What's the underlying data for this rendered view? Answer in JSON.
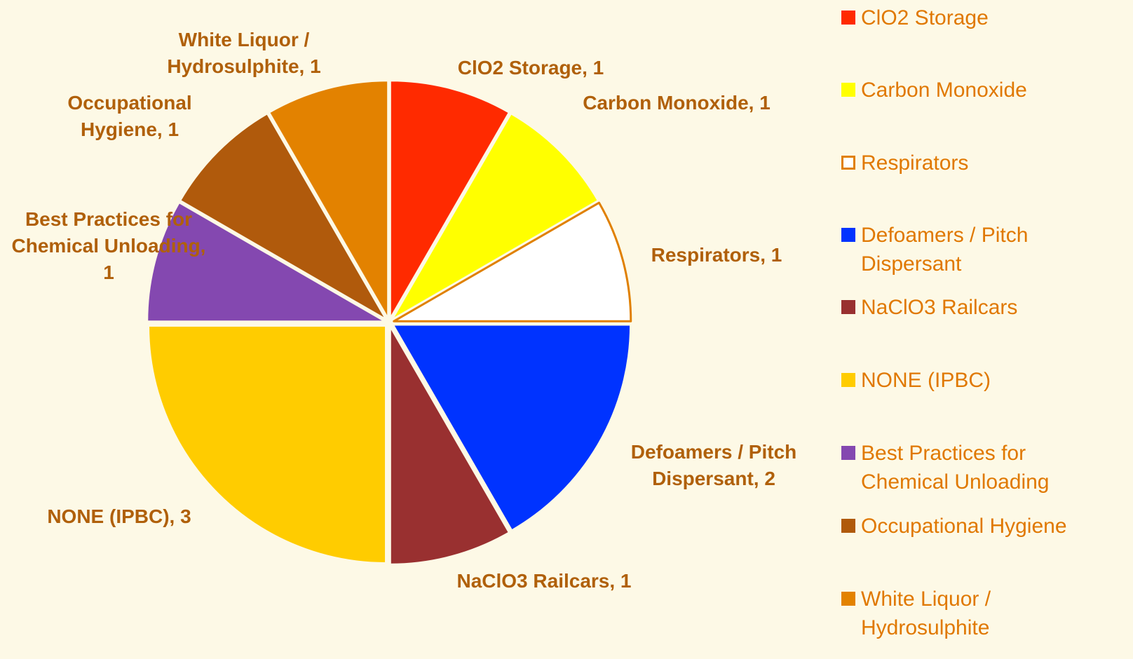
{
  "chart_data": {
    "type": "pie",
    "categories": [
      "ClO2 Storage",
      "Carbon Monoxide",
      "Respirators",
      "Defoamers / Pitch Dispersant",
      "NaClO3 Railcars",
      "NONE (IPBC)",
      "Best Practices for Chemical Unloading",
      "Occupational Hygiene",
      "White Liquor / Hydrosulphite"
    ],
    "values": [
      1,
      1,
      1,
      2,
      1,
      3,
      1,
      1,
      1
    ],
    "value_labels": [
      "ClO2 Storage, 1",
      "Carbon Monoxide, 1",
      "Respirators, 1",
      "Defoamers / Pitch Dispersant, 2",
      "NaClO3 Railcars, 1",
      "NONE (IPBC), 3",
      "Best Practices for Chemical Unloading, 1",
      "Occupational Hygiene, 1",
      "White Liquor / Hydrosulphite, 1"
    ],
    "colors": [
      "#ff2a00",
      "#ffff00",
      "#ffffff",
      "#0033ff",
      "#993030",
      "#ffcc00",
      "#8448b0",
      "#b05a0c",
      "#e38200"
    ],
    "legend": "right"
  }
}
